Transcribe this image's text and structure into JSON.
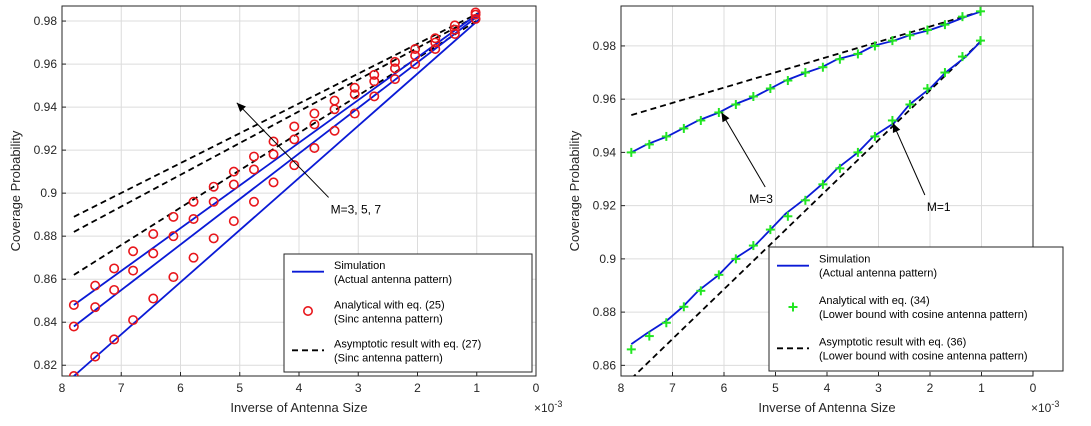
{
  "chart_data": [
    {
      "type": "line",
      "xlabel": "Inverse of Antenna Size",
      "ylabel": "Coverage Probability",
      "x_exponent": "×10",
      "x_exponent_power": "-3",
      "xlim": [
        8,
        0
      ],
      "ylim": [
        0.815,
        0.987
      ],
      "x_reversed": true,
      "grid": true,
      "xticks": [
        "8",
        "7",
        "6",
        "5",
        "4",
        "3",
        "2",
        "1",
        "0"
      ],
      "yticks": [
        "0.82",
        "0.84",
        "0.86",
        "0.88",
        "0.9",
        "0.92",
        "0.94",
        "0.96",
        "0.98"
      ],
      "legend_position": "bottom-right",
      "legend": [
        {
          "label": "Simulation",
          "sub": "(Actual antenna pattern)",
          "style": "solid-blue"
        },
        {
          "label": "Analytical with eq. (25)",
          "sub": "(Sinc antenna pattern)",
          "style": "red-circle"
        },
        {
          "label": "Asymptotic result with eq. (27)",
          "sub": "(Sinc antenna pattern)",
          "style": "dashed-black"
        }
      ],
      "annotation": {
        "text": "M=3, 5, 7",
        "from": [
          3.5,
          0.898
        ],
        "to": [
          5.05,
          0.942
        ]
      },
      "series": [
        {
          "kind": "simulation",
          "group": "M=3",
          "x": [
            7.8,
            0.95
          ],
          "y": [
            0.815,
            0.981
          ]
        },
        {
          "kind": "simulation",
          "group": "M=5",
          "x": [
            7.8,
            0.95
          ],
          "y": [
            0.838,
            0.983
          ]
        },
        {
          "kind": "simulation",
          "group": "M=7",
          "x": [
            7.8,
            0.95
          ],
          "y": [
            0.848,
            0.984
          ]
        },
        {
          "kind": "analytical",
          "group": "M=3",
          "x": [
            7.8,
            7.44,
            7.12,
            6.8,
            6.46,
            6.12,
            5.78,
            5.44,
            5.1,
            4.76,
            4.43,
            4.08,
            3.74,
            3.4,
            3.06,
            2.73,
            2.38,
            2.04,
            1.7,
            1.37,
            1.02
          ],
          "y": [
            0.815,
            0.824,
            0.832,
            0.841,
            0.851,
            0.861,
            0.87,
            0.879,
            0.887,
            0.896,
            0.905,
            0.913,
            0.921,
            0.929,
            0.937,
            0.945,
            0.953,
            0.96,
            0.967,
            0.974,
            0.981
          ]
        },
        {
          "kind": "analytical",
          "group": "M=5",
          "x": [
            7.8,
            7.44,
            7.12,
            6.8,
            6.46,
            6.12,
            5.78,
            5.44,
            5.1,
            4.76,
            4.43,
            4.08,
            3.74,
            3.4,
            3.06,
            2.73,
            2.38,
            2.04,
            1.7,
            1.37,
            1.02
          ],
          "y": [
            0.838,
            0.847,
            0.855,
            0.864,
            0.872,
            0.88,
            0.888,
            0.896,
            0.904,
            0.911,
            0.918,
            0.925,
            0.932,
            0.939,
            0.946,
            0.952,
            0.958,
            0.964,
            0.97,
            0.976,
            0.983
          ]
        },
        {
          "kind": "analytical",
          "group": "M=7",
          "x": [
            7.8,
            7.44,
            7.12,
            6.8,
            6.46,
            6.12,
            5.78,
            5.44,
            5.1,
            4.76,
            4.43,
            4.08,
            3.74,
            3.4,
            3.06,
            2.73,
            2.38,
            2.04,
            1.7,
            1.37,
            1.02
          ],
          "y": [
            0.848,
            0.857,
            0.865,
            0.873,
            0.881,
            0.889,
            0.896,
            0.903,
            0.91,
            0.917,
            0.924,
            0.931,
            0.937,
            0.943,
            0.949,
            0.955,
            0.961,
            0.967,
            0.972,
            0.978,
            0.984
          ]
        },
        {
          "kind": "asymptotic",
          "group": "M=3",
          "x": [
            7.8,
            0.95
          ],
          "y": [
            0.862,
            0.981
          ]
        },
        {
          "kind": "asymptotic",
          "group": "M=5",
          "x": [
            7.8,
            0.95
          ],
          "y": [
            0.882,
            0.983
          ]
        },
        {
          "kind": "asymptotic",
          "group": "M=7",
          "x": [
            7.8,
            0.95
          ],
          "y": [
            0.889,
            0.984
          ]
        }
      ]
    },
    {
      "type": "line",
      "xlabel": "Inverse of Antenna Size",
      "ylabel": "Coverage Probability",
      "x_exponent": "×10",
      "x_exponent_power": "-3",
      "xlim": [
        8,
        0
      ],
      "ylim": [
        0.856,
        0.995
      ],
      "x_reversed": true,
      "grid": true,
      "xticks": [
        "8",
        "7",
        "6",
        "5",
        "4",
        "3",
        "2",
        "1",
        "0"
      ],
      "yticks": [
        "0.86",
        "0.88",
        "0.9",
        "0.92",
        "0.94",
        "0.96",
        "0.98"
      ],
      "legend_position": "bottom-right",
      "legend": [
        {
          "label": "Simulation",
          "sub": "(Actual antenna pattern)",
          "style": "solid-blue"
        },
        {
          "label": "Analytical with eq. (34)",
          "sub": "(Lower bound with cosine antenna pattern)",
          "style": "green-plus"
        },
        {
          "label": "Asymptotic result with eq. (36)",
          "sub": "(Lower bound with cosine antenna pattern)",
          "style": "dashed-black"
        }
      ],
      "annotations": [
        {
          "text": "M=3",
          "from": [
            5.2,
            0.927
          ],
          "to": [
            6.05,
            0.955
          ]
        },
        {
          "text": "M=1",
          "from": [
            2.1,
            0.924
          ],
          "to": [
            2.72,
            0.951
          ]
        }
      ],
      "series": [
        {
          "kind": "simulation",
          "group": "M=1",
          "x": [
            7.8,
            7.5,
            7.1,
            6.8,
            6.5,
            6.1,
            5.8,
            5.4,
            5.1,
            4.8,
            4.4,
            4.1,
            3.8,
            3.4,
            3.1,
            2.7,
            2.4,
            2.0,
            1.7,
            1.3,
            1.0
          ],
          "y": [
            0.868,
            0.872,
            0.877,
            0.882,
            0.888,
            0.894,
            0.9,
            0.905,
            0.911,
            0.917,
            0.923,
            0.928,
            0.934,
            0.94,
            0.946,
            0.951,
            0.958,
            0.964,
            0.97,
            0.976,
            0.982
          ]
        },
        {
          "kind": "simulation",
          "group": "M=3",
          "x": [
            7.8,
            7.5,
            7.1,
            6.8,
            6.5,
            6.1,
            5.8,
            5.4,
            5.1,
            4.8,
            4.4,
            4.1,
            3.8,
            3.4,
            3.1,
            2.7,
            2.4,
            2.0,
            1.7,
            1.3,
            1.0
          ],
          "y": [
            0.94,
            0.943,
            0.946,
            0.949,
            0.952,
            0.955,
            0.958,
            0.961,
            0.964,
            0.967,
            0.97,
            0.972,
            0.975,
            0.977,
            0.98,
            0.982,
            0.984,
            0.986,
            0.988,
            0.991,
            0.993
          ]
        },
        {
          "kind": "analytical",
          "group": "M=1",
          "x": [
            7.8,
            7.45,
            7.12,
            6.78,
            6.45,
            6.1,
            5.77,
            5.43,
            5.1,
            4.76,
            4.42,
            4.08,
            3.75,
            3.4,
            3.07,
            2.73,
            2.39,
            2.05,
            1.71,
            1.37,
            1.02
          ],
          "y": [
            0.866,
            0.871,
            0.876,
            0.882,
            0.888,
            0.894,
            0.9,
            0.905,
            0.911,
            0.916,
            0.922,
            0.928,
            0.934,
            0.94,
            0.946,
            0.952,
            0.958,
            0.964,
            0.97,
            0.976,
            0.982
          ]
        },
        {
          "kind": "analytical",
          "group": "M=3",
          "x": [
            7.8,
            7.45,
            7.12,
            6.78,
            6.45,
            6.1,
            5.77,
            5.43,
            5.1,
            4.76,
            4.42,
            4.08,
            3.75,
            3.4,
            3.07,
            2.73,
            2.39,
            2.05,
            1.71,
            1.37,
            1.02
          ],
          "y": [
            0.94,
            0.943,
            0.946,
            0.949,
            0.952,
            0.955,
            0.958,
            0.961,
            0.964,
            0.967,
            0.97,
            0.972,
            0.975,
            0.977,
            0.98,
            0.982,
            0.984,
            0.986,
            0.988,
            0.991,
            0.993
          ]
        },
        {
          "kind": "asymptotic",
          "group": "M=1",
          "x": [
            7.8,
            1.0
          ],
          "y": [
            0.855,
            0.982
          ]
        },
        {
          "kind": "asymptotic",
          "group": "M=3",
          "x": [
            7.8,
            1.0
          ],
          "y": [
            0.954,
            0.993
          ]
        }
      ]
    }
  ]
}
